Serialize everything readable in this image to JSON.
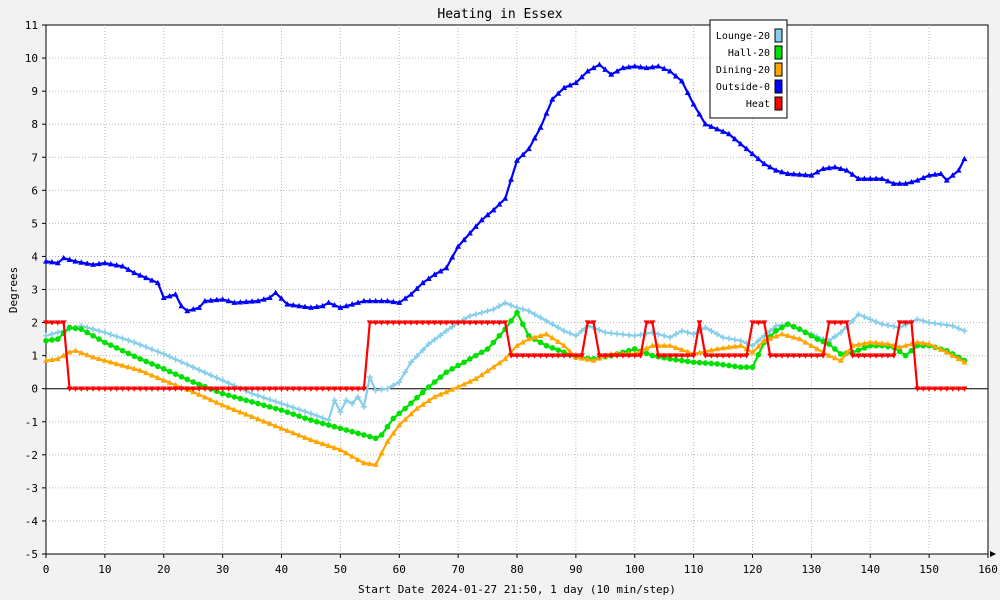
{
  "chart_data": {
    "type": "line",
    "title": "Heating in Essex",
    "xlabel": "Start Date 2024-01-27 21:50, 1 day (10 min/step)",
    "ylabel": "Degrees",
    "xlim": [
      0,
      160
    ],
    "ylim": [
      -5,
      11
    ],
    "x_ticks": [
      0,
      10,
      20,
      30,
      40,
      50,
      60,
      70,
      80,
      90,
      100,
      110,
      120,
      130,
      140,
      150,
      160
    ],
    "y_ticks": [
      -5,
      -4,
      -3,
      -2,
      -1,
      0,
      1,
      2,
      3,
      4,
      5,
      6,
      7,
      8,
      9,
      10,
      11
    ],
    "grid": true,
    "legend_position": "top-right",
    "series": [
      {
        "name": "Lounge-20",
        "color": "#87ceeb",
        "marker": "plus",
        "points": [
          [
            0,
            1.6
          ],
          [
            3,
            1.75
          ],
          [
            6,
            1.9
          ],
          [
            10,
            1.7
          ],
          [
            15,
            1.4
          ],
          [
            20,
            1.05
          ],
          [
            25,
            0.65
          ],
          [
            30,
            0.25
          ],
          [
            35,
            -0.15
          ],
          [
            40,
            -0.45
          ],
          [
            45,
            -0.75
          ],
          [
            48,
            -0.95
          ],
          [
            49,
            -0.35
          ],
          [
            50,
            -0.7
          ],
          [
            51,
            -0.35
          ],
          [
            52,
            -0.45
          ],
          [
            53,
            -0.25
          ],
          [
            54,
            -0.55
          ],
          [
            55,
            0.35
          ],
          [
            56,
            -0.05
          ],
          [
            58,
            0.0
          ],
          [
            60,
            0.2
          ],
          [
            62,
            0.8
          ],
          [
            65,
            1.35
          ],
          [
            68,
            1.75
          ],
          [
            70,
            2.0
          ],
          [
            72,
            2.2
          ],
          [
            74,
            2.3
          ],
          [
            76,
            2.4
          ],
          [
            78,
            2.6
          ],
          [
            80,
            2.45
          ],
          [
            82,
            2.35
          ],
          [
            85,
            2.05
          ],
          [
            88,
            1.75
          ],
          [
            90,
            1.6
          ],
          [
            92,
            1.9
          ],
          [
            93,
            1.85
          ],
          [
            95,
            1.7
          ],
          [
            100,
            1.6
          ],
          [
            103,
            1.7
          ],
          [
            106,
            1.55
          ],
          [
            108,
            1.75
          ],
          [
            110,
            1.65
          ],
          [
            112,
            1.85
          ],
          [
            115,
            1.55
          ],
          [
            118,
            1.45
          ],
          [
            120,
            1.3
          ],
          [
            122,
            1.6
          ],
          [
            124,
            1.9
          ],
          [
            126,
            1.95
          ],
          [
            130,
            1.65
          ],
          [
            132,
            1.5
          ],
          [
            133,
            1.45
          ],
          [
            135,
            1.7
          ],
          [
            137,
            2.05
          ],
          [
            138,
            2.25
          ],
          [
            140,
            2.1
          ],
          [
            142,
            1.95
          ],
          [
            145,
            1.85
          ],
          [
            148,
            2.1
          ],
          [
            150,
            2.0
          ],
          [
            152,
            1.95
          ],
          [
            154,
            1.9
          ],
          [
            156,
            1.75
          ]
        ]
      },
      {
        "name": "Hall-20",
        "color": "#00e000",
        "marker": "circle",
        "points": [
          [
            0,
            1.45
          ],
          [
            2,
            1.5
          ],
          [
            4,
            1.85
          ],
          [
            6,
            1.8
          ],
          [
            8,
            1.6
          ],
          [
            10,
            1.4
          ],
          [
            13,
            1.15
          ],
          [
            16,
            0.9
          ],
          [
            20,
            0.6
          ],
          [
            25,
            0.2
          ],
          [
            30,
            -0.15
          ],
          [
            35,
            -0.4
          ],
          [
            40,
            -0.65
          ],
          [
            45,
            -0.95
          ],
          [
            50,
            -1.2
          ],
          [
            54,
            -1.4
          ],
          [
            56,
            -1.5
          ],
          [
            57,
            -1.4
          ],
          [
            59,
            -0.9
          ],
          [
            61,
            -0.6
          ],
          [
            65,
            0.05
          ],
          [
            68,
            0.5
          ],
          [
            70,
            0.7
          ],
          [
            72,
            0.9
          ],
          [
            75,
            1.2
          ],
          [
            78,
            1.8
          ],
          [
            80,
            2.3
          ],
          [
            82,
            1.6
          ],
          [
            85,
            1.3
          ],
          [
            88,
            1.1
          ],
          [
            90,
            0.95
          ],
          [
            93,
            0.9
          ],
          [
            96,
            1.0
          ],
          [
            100,
            1.2
          ],
          [
            103,
            1.0
          ],
          [
            106,
            0.9
          ],
          [
            110,
            0.8
          ],
          [
            114,
            0.75
          ],
          [
            118,
            0.65
          ],
          [
            120,
            0.65
          ],
          [
            122,
            1.4
          ],
          [
            124,
            1.75
          ],
          [
            126,
            1.95
          ],
          [
            128,
            1.8
          ],
          [
            131,
            1.5
          ],
          [
            133,
            1.35
          ],
          [
            135,
            1.05
          ],
          [
            137,
            1.1
          ],
          [
            140,
            1.3
          ],
          [
            142,
            1.3
          ],
          [
            144,
            1.25
          ],
          [
            146,
            1.0
          ],
          [
            148,
            1.3
          ],
          [
            150,
            1.3
          ],
          [
            153,
            1.15
          ],
          [
            156,
            0.85
          ]
        ]
      },
      {
        "name": "Dining-20",
        "color": "#ffa500",
        "marker": "triangle",
        "points": [
          [
            0,
            0.85
          ],
          [
            2,
            0.9
          ],
          [
            4,
            1.1
          ],
          [
            5,
            1.15
          ],
          [
            8,
            0.95
          ],
          [
            12,
            0.75
          ],
          [
            16,
            0.55
          ],
          [
            20,
            0.25
          ],
          [
            25,
            -0.1
          ],
          [
            30,
            -0.5
          ],
          [
            35,
            -0.85
          ],
          [
            40,
            -1.2
          ],
          [
            45,
            -1.55
          ],
          [
            50,
            -1.85
          ],
          [
            54,
            -2.25
          ],
          [
            56,
            -2.3
          ],
          [
            58,
            -1.6
          ],
          [
            60,
            -1.1
          ],
          [
            63,
            -0.6
          ],
          [
            66,
            -0.25
          ],
          [
            70,
            0.05
          ],
          [
            73,
            0.3
          ],
          [
            76,
            0.65
          ],
          [
            78,
            0.9
          ],
          [
            80,
            1.3
          ],
          [
            82,
            1.5
          ],
          [
            85,
            1.65
          ],
          [
            88,
            1.3
          ],
          [
            90,
            0.95
          ],
          [
            93,
            0.85
          ],
          [
            96,
            1.05
          ],
          [
            100,
            1.05
          ],
          [
            103,
            1.3
          ],
          [
            106,
            1.3
          ],
          [
            110,
            1.05
          ],
          [
            114,
            1.2
          ],
          [
            118,
            1.3
          ],
          [
            120,
            1.1
          ],
          [
            122,
            1.45
          ],
          [
            125,
            1.65
          ],
          [
            128,
            1.5
          ],
          [
            131,
            1.2
          ],
          [
            133,
            1.0
          ],
          [
            135,
            0.85
          ],
          [
            137,
            1.3
          ],
          [
            140,
            1.4
          ],
          [
            143,
            1.35
          ],
          [
            145,
            1.25
          ],
          [
            148,
            1.4
          ],
          [
            150,
            1.35
          ],
          [
            153,
            1.1
          ],
          [
            156,
            0.8
          ]
        ]
      },
      {
        "name": "Outside-0",
        "color": "#0000ff",
        "marker": "triangle",
        "points": [
          [
            0,
            3.85
          ],
          [
            2,
            3.8
          ],
          [
            3,
            3.95
          ],
          [
            5,
            3.85
          ],
          [
            8,
            3.75
          ],
          [
            10,
            3.8
          ],
          [
            13,
            3.7
          ],
          [
            15,
            3.5
          ],
          [
            17,
            3.35
          ],
          [
            19,
            3.2
          ],
          [
            20,
            2.75
          ],
          [
            22,
            2.85
          ],
          [
            23,
            2.5
          ],
          [
            24,
            2.35
          ],
          [
            26,
            2.45
          ],
          [
            27,
            2.65
          ],
          [
            30,
            2.7
          ],
          [
            32,
            2.6
          ],
          [
            36,
            2.65
          ],
          [
            38,
            2.75
          ],
          [
            39,
            2.9
          ],
          [
            41,
            2.55
          ],
          [
            45,
            2.45
          ],
          [
            47,
            2.5
          ],
          [
            48,
            2.6
          ],
          [
            50,
            2.45
          ],
          [
            52,
            2.55
          ],
          [
            54,
            2.65
          ],
          [
            58,
            2.65
          ],
          [
            60,
            2.6
          ],
          [
            62,
            2.85
          ],
          [
            64,
            3.2
          ],
          [
            66,
            3.45
          ],
          [
            68,
            3.65
          ],
          [
            70,
            4.3
          ],
          [
            72,
            4.7
          ],
          [
            74,
            5.1
          ],
          [
            76,
            5.4
          ],
          [
            78,
            5.75
          ],
          [
            80,
            6.9
          ],
          [
            82,
            7.25
          ],
          [
            84,
            7.9
          ],
          [
            86,
            8.75
          ],
          [
            88,
            9.1
          ],
          [
            90,
            9.25
          ],
          [
            92,
            9.6
          ],
          [
            94,
            9.8
          ],
          [
            96,
            9.5
          ],
          [
            98,
            9.7
          ],
          [
            100,
            9.75
          ],
          [
            102,
            9.7
          ],
          [
            104,
            9.75
          ],
          [
            106,
            9.6
          ],
          [
            108,
            9.3
          ],
          [
            110,
            8.6
          ],
          [
            112,
            8.0
          ],
          [
            114,
            7.85
          ],
          [
            116,
            7.7
          ],
          [
            118,
            7.4
          ],
          [
            120,
            7.1
          ],
          [
            122,
            6.8
          ],
          [
            124,
            6.6
          ],
          [
            126,
            6.5
          ],
          [
            130,
            6.45
          ],
          [
            132,
            6.65
          ],
          [
            134,
            6.7
          ],
          [
            136,
            6.6
          ],
          [
            138,
            6.35
          ],
          [
            140,
            6.35
          ],
          [
            142,
            6.35
          ],
          [
            144,
            6.2
          ],
          [
            146,
            6.2
          ],
          [
            148,
            6.3
          ],
          [
            150,
            6.45
          ],
          [
            152,
            6.5
          ],
          [
            153,
            6.3
          ],
          [
            154,
            6.45
          ],
          [
            155,
            6.6
          ],
          [
            156,
            6.95
          ]
        ]
      },
      {
        "name": "Heat",
        "color": "#ff0000",
        "marker": "triangle-down",
        "points": [
          [
            0,
            2
          ],
          [
            2,
            2
          ],
          [
            3,
            2
          ],
          [
            4,
            0
          ],
          [
            54,
            0
          ],
          [
            55,
            2
          ],
          [
            78,
            2
          ],
          [
            79,
            1
          ],
          [
            91,
            1
          ],
          [
            92,
            2
          ],
          [
            93,
            2
          ],
          [
            94,
            1
          ],
          [
            101,
            1
          ],
          [
            102,
            2
          ],
          [
            103,
            2
          ],
          [
            104,
            1
          ],
          [
            110,
            1
          ],
          [
            111,
            2
          ],
          [
            112,
            1
          ],
          [
            119,
            1
          ],
          [
            120,
            2
          ],
          [
            122,
            2
          ],
          [
            123,
            1
          ],
          [
            132,
            1
          ],
          [
            133,
            2
          ],
          [
            136,
            2
          ],
          [
            137,
            1
          ],
          [
            144,
            1
          ],
          [
            145,
            2
          ],
          [
            147,
            2
          ],
          [
            148,
            0
          ],
          [
            156,
            0
          ]
        ]
      }
    ]
  }
}
